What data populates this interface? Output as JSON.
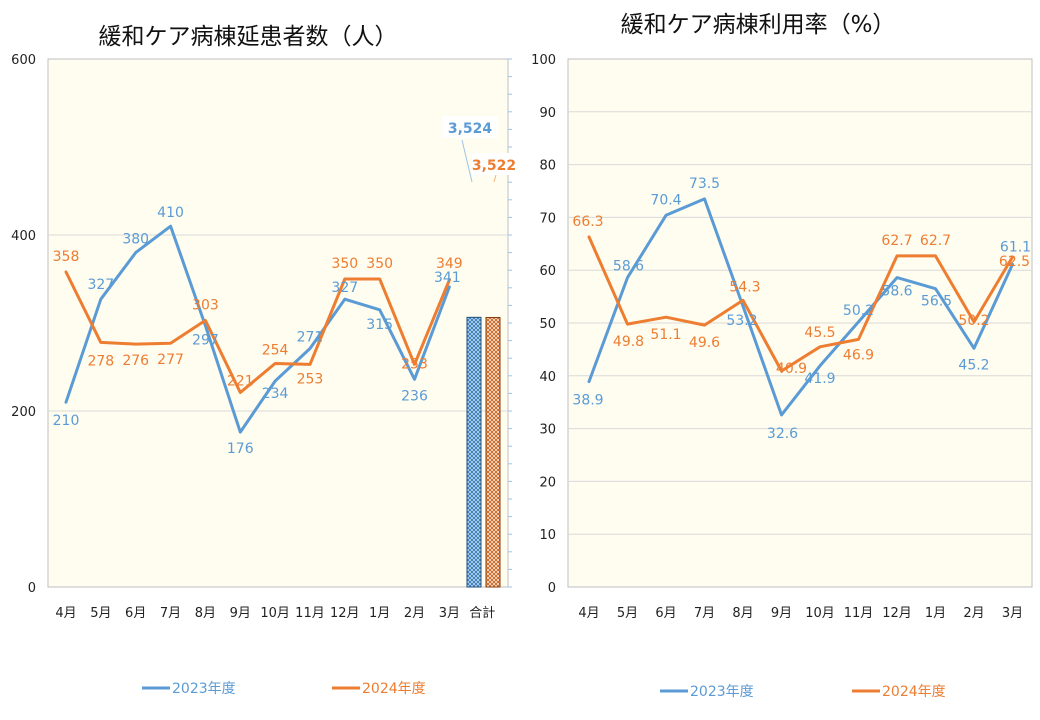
{
  "colors": {
    "series_2023": "#5b9bd5",
    "series_2024": "#ed7d31",
    "plot_bg": "#fffdf0",
    "grid": "#d9d9d9"
  },
  "chart_data": [
    {
      "type": "line",
      "title": "緩和ケア病棟延患者数（人）",
      "categories": [
        "4月",
        "5月",
        "6月",
        "7月",
        "8月",
        "9月",
        "10月",
        "11月",
        "12月",
        "1月",
        "2月",
        "3月"
      ],
      "series": [
        {
          "name": "2023年度",
          "values": [
            210,
            327,
            380,
            410,
            297,
            176,
            234,
            271,
            327,
            315,
            236,
            341
          ]
        },
        {
          "name": "2024年度",
          "values": [
            358,
            278,
            276,
            277,
            303,
            221,
            254,
            253,
            350,
            350,
            253,
            349
          ]
        }
      ],
      "y_labels": [
        "0",
        "200",
        "400",
        "600"
      ],
      "ylim": [
        0,
        600
      ],
      "secondary_bars": {
        "category": "合計",
        "values": [
          3524,
          3522
        ],
        "labels": [
          "3,524",
          "3,522"
        ]
      },
      "legend": "bottom",
      "grid": true
    },
    {
      "type": "line",
      "title": "緩和ケア病棟利用率（%）",
      "categories": [
        "4月",
        "5月",
        "6月",
        "7月",
        "8月",
        "9月",
        "10月",
        "11月",
        "12月",
        "1月",
        "2月",
        "3月"
      ],
      "series": [
        {
          "name": "2023年度",
          "values": [
            38.9,
            58.6,
            70.4,
            73.5,
            53.2,
            32.6,
            41.9,
            50.2,
            58.6,
            56.5,
            45.2,
            61.1
          ]
        },
        {
          "name": "2024年度",
          "values": [
            66.3,
            49.8,
            51.1,
            49.6,
            54.3,
            40.9,
            45.5,
            46.9,
            62.7,
            62.7,
            50.2,
            62.5
          ]
        }
      ],
      "y_labels": [
        "0",
        "10",
        "20",
        "30",
        "40",
        "50",
        "60",
        "70",
        "80",
        "90",
        "100"
      ],
      "ylim": [
        0,
        100
      ],
      "legend": "bottom",
      "grid": true
    }
  ]
}
